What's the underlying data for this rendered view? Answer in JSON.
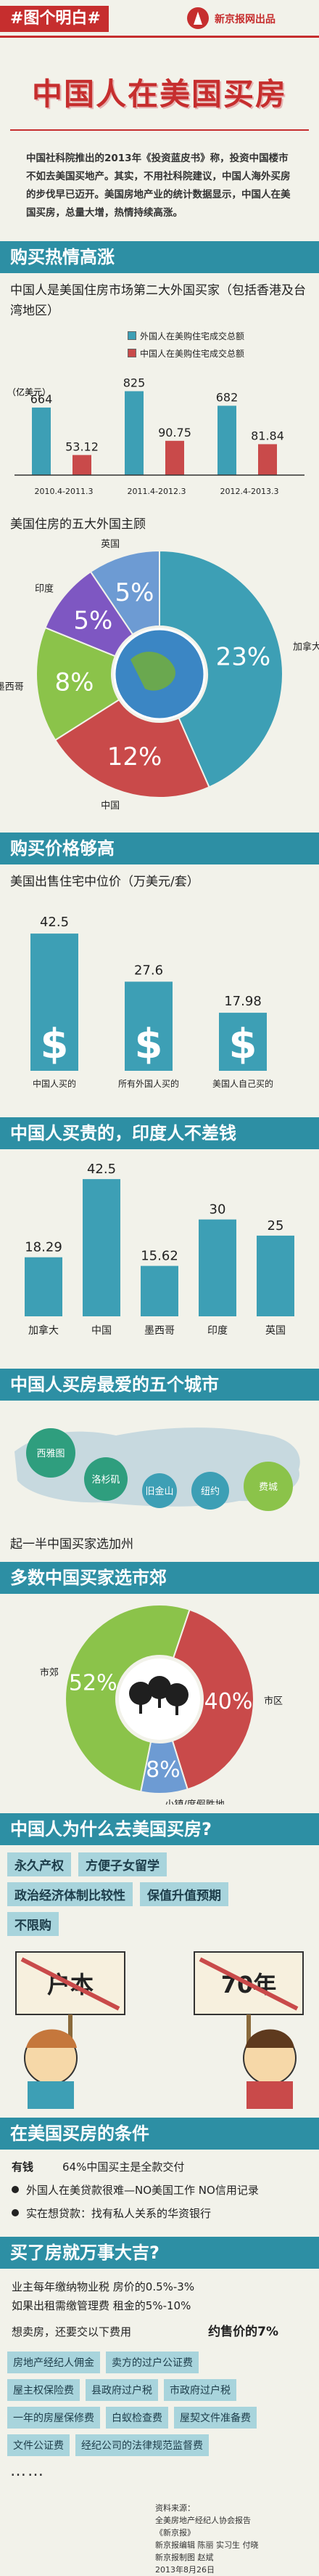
{
  "header": {
    "tag": "#图个明白#",
    "brand": "新京报网出品",
    "title": "中国人在美国买房",
    "intro": "中国社科院推出的2013年《投资蓝皮书》称，投资中国楼市不如去美国买地产。其实，不用社科院建议，中国人海外买房的步伐早已迈开。美国房地产业的统计数据显示，中国人在美国买房，总量大增，热情持续高涨。"
  },
  "sec1": {
    "title": "购买热情高涨",
    "subtitle": "中国人是美国住房市场第二大外国买家（包括香港及台湾地区）",
    "yunit": "（亿美元）"
  },
  "chart_data": [
    {
      "type": "bar",
      "categories": [
        "2010.4-2011.3",
        "2011.4-2012.3",
        "2012.4-2013.3"
      ],
      "series": [
        {
          "name": "外国人在美购住宅成交总额",
          "values": [
            664,
            825,
            682
          ]
        },
        {
          "name": "中国人在美购住宅成交总额",
          "values": [
            53.12,
            90.75,
            81.84
          ]
        }
      ],
      "labels": [
        [
          "664",
          "53.12"
        ],
        [
          "825",
          "90.75"
        ],
        [
          "682",
          "81.84"
        ]
      ],
      "colors": [
        "#3d9fb5",
        "#c94a4a"
      ]
    },
    {
      "type": "pie",
      "title": "美国住房的五大外国主顾",
      "categories": [
        "加拿大",
        "中国",
        "墨西哥",
        "印度",
        "英国"
      ],
      "values": [
        23,
        12,
        8,
        5,
        5
      ],
      "labels": [
        "23%",
        "12%",
        "8%",
        "5%",
        "5%"
      ],
      "colors": [
        "#3d9fb5",
        "#c94a4a",
        "#8bc34a",
        "#7e57c2",
        "#6d9bd3"
      ]
    },
    {
      "type": "bar",
      "title": "美国出售住宅中位价（万美元/套）",
      "categories": [
        "中国人买的",
        "所有外国人买的",
        "美国人自己买的"
      ],
      "values": [
        42.5,
        27.6,
        17.98
      ],
      "labels": [
        "42.5",
        "27.6",
        "17.98"
      ],
      "color": "#3d9fb5"
    },
    {
      "type": "bar",
      "categories": [
        "加拿大",
        "中国",
        "墨西哥",
        "印度",
        "英国"
      ],
      "values": [
        18.29,
        42.5,
        15.62,
        30,
        25
      ],
      "labels": [
        "18.29",
        "42.5",
        "15.62",
        "30",
        "25"
      ],
      "color": "#3d9fb5"
    },
    {
      "type": "pie",
      "categories": [
        "市郊",
        "市区",
        "小镇/度假胜地"
      ],
      "values": [
        52,
        40,
        8
      ],
      "labels": [
        "52%",
        "40%",
        "8%"
      ],
      "colors": [
        "#8bc34a",
        "#c94a4a",
        "#6d9bd3"
      ]
    }
  ],
  "sec2": {
    "title": "购买价格够高"
  },
  "sec3": {
    "title": "中国人买贵的，印度人不差钱"
  },
  "sec4": {
    "title": "中国人买房最爱的五个城市",
    "cities": [
      "西雅图",
      "洛杉矶",
      "旧金山",
      "纽约",
      "费城"
    ],
    "note": "起一半中国买家选加州"
  },
  "sec5": {
    "title": "多数中国买家选市郊"
  },
  "sec6": {
    "title": "中国人为什么去美国买房?",
    "reasons": [
      "永久产权",
      "方便子女留学",
      "政治经济体制比较性",
      "保值升值预期",
      "不限购"
    ],
    "sign_left": "户本",
    "sign_right": "70年"
  },
  "sec7": {
    "title": "在美国买房的条件",
    "line1_k": "有钱",
    "line1_v": "64%中国买主是全款交付",
    "line2": "外国人在美贷款很难—NO美国工作 NO信用记录",
    "line3": "实在想贷款：找有私人关系的华资银行"
  },
  "sec8": {
    "title": "买了房就万事大吉?",
    "tax_label": "业主每年缴纳物业税 房价的0.5%-3%",
    "tax_label2": "如果出租需缴管理费 租金的5%-10%",
    "sell_left": "想卖房，还要交以下费用",
    "sell_right": "约售价的7%",
    "fees": [
      [
        "房地产经纪人佣金",
        "卖方的过户公证费"
      ],
      [
        "屋主权保险费",
        "县政府过户税",
        "市政府过户税"
      ],
      [
        "一年的房屋保修费",
        "白蚁检查费",
        "屋契文件准备费"
      ],
      [
        "文件公证费",
        "经纪公司的法律规范监督费"
      ]
    ],
    "dots": "……"
  },
  "footer": {
    "lines": [
      "资料来源：",
      "全美房地产经纪人协会报告",
      "《新京报》",
      "新京报编辑 陈丽 实习生 付晓",
      "新京报制图 赵斌",
      "2013年8月26日"
    ]
  }
}
